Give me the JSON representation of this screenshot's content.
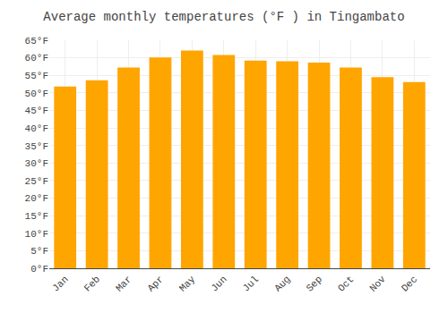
{
  "chart_data": {
    "type": "bar",
    "title": "Average monthly temperatures (°F ) in Tingambato",
    "categories": [
      "Jan",
      "Feb",
      "Mar",
      "Apr",
      "May",
      "Jun",
      "Jul",
      "Aug",
      "Sep",
      "Oct",
      "Nov",
      "Dec"
    ],
    "values": [
      51.8,
      53.6,
      57.2,
      60.1,
      62.1,
      60.8,
      59.2,
      59.0,
      58.6,
      57.2,
      54.5,
      53.1
    ],
    "color": "#FFA500",
    "ylim": [
      0,
      65
    ],
    "yticks": [
      {
        "value": 0,
        "label": "0°F"
      },
      {
        "value": 5,
        "label": "5°F"
      },
      {
        "value": 10,
        "label": "10°F"
      },
      {
        "value": 15,
        "label": "15°F"
      },
      {
        "value": 20,
        "label": "20°F"
      },
      {
        "value": 25,
        "label": "25°F"
      },
      {
        "value": 30,
        "label": "30°F"
      },
      {
        "value": 35,
        "label": "35°F"
      },
      {
        "value": 40,
        "label": "40°F"
      },
      {
        "value": 45,
        "label": "45°F"
      },
      {
        "value": 50,
        "label": "50°F"
      },
      {
        "value": 55,
        "label": "55°F"
      },
      {
        "value": 60,
        "label": "60°F"
      },
      {
        "value": 65,
        "label": "65°F"
      }
    ],
    "grid": true
  }
}
